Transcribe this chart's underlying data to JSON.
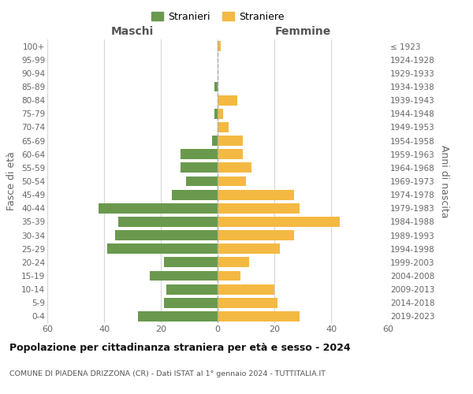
{
  "age_groups": [
    "0-4",
    "5-9",
    "10-14",
    "15-19",
    "20-24",
    "25-29",
    "30-34",
    "35-39",
    "40-44",
    "45-49",
    "50-54",
    "55-59",
    "60-64",
    "65-69",
    "70-74",
    "75-79",
    "80-84",
    "85-89",
    "90-94",
    "95-99",
    "100+"
  ],
  "birth_years": [
    "2019-2023",
    "2014-2018",
    "2009-2013",
    "2004-2008",
    "1999-2003",
    "1994-1998",
    "1989-1993",
    "1984-1988",
    "1979-1983",
    "1974-1978",
    "1969-1973",
    "1964-1968",
    "1959-1963",
    "1954-1958",
    "1949-1953",
    "1944-1948",
    "1939-1943",
    "1934-1938",
    "1929-1933",
    "1924-1928",
    "≤ 1923"
  ],
  "males": [
    28,
    19,
    18,
    24,
    19,
    39,
    36,
    35,
    42,
    16,
    11,
    13,
    13,
    2,
    0,
    1,
    0,
    1,
    0,
    0,
    0
  ],
  "females": [
    29,
    21,
    20,
    8,
    11,
    22,
    27,
    43,
    29,
    27,
    10,
    12,
    9,
    9,
    4,
    2,
    7,
    0,
    0,
    0,
    1
  ],
  "male_color": "#6a994e",
  "female_color": "#f4b942",
  "male_label": "Stranieri",
  "female_label": "Straniere",
  "title": "Popolazione per cittadinanza straniera per età e sesso - 2024",
  "subtitle": "COMUNE DI PIADENA DRIZZONA (CR) - Dati ISTAT al 1° gennaio 2024 - TUTTITALIA.IT",
  "xlabel_left": "Maschi",
  "xlabel_right": "Femmine",
  "ylabel_left": "Fasce di età",
  "ylabel_right": "Anni di nascita",
  "xlim": 60,
  "background_color": "#ffffff",
  "grid_color": "#cccccc"
}
